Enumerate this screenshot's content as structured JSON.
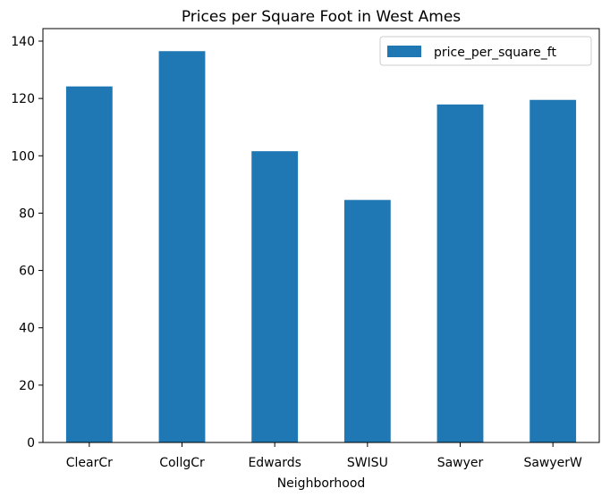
{
  "chart_data": {
    "type": "bar",
    "title": "Prices per Square Foot in West Ames",
    "xlabel": "Neighborhood",
    "ylabel": "",
    "categories": [
      "ClearCr",
      "CollgCr",
      "Edwards",
      "SWISU",
      "Sawyer",
      "SawyerW"
    ],
    "series": [
      {
        "name": "price_per_square_ft",
        "values": [
          124.2,
          136.5,
          101.6,
          84.6,
          117.9,
          119.5
        ],
        "color": "#1f77b4"
      }
    ],
    "ylim": [
      0,
      140
    ],
    "yticks": [
      0,
      20,
      40,
      60,
      80,
      100,
      120,
      140
    ],
    "grid": false,
    "legend_position": "top-right"
  }
}
